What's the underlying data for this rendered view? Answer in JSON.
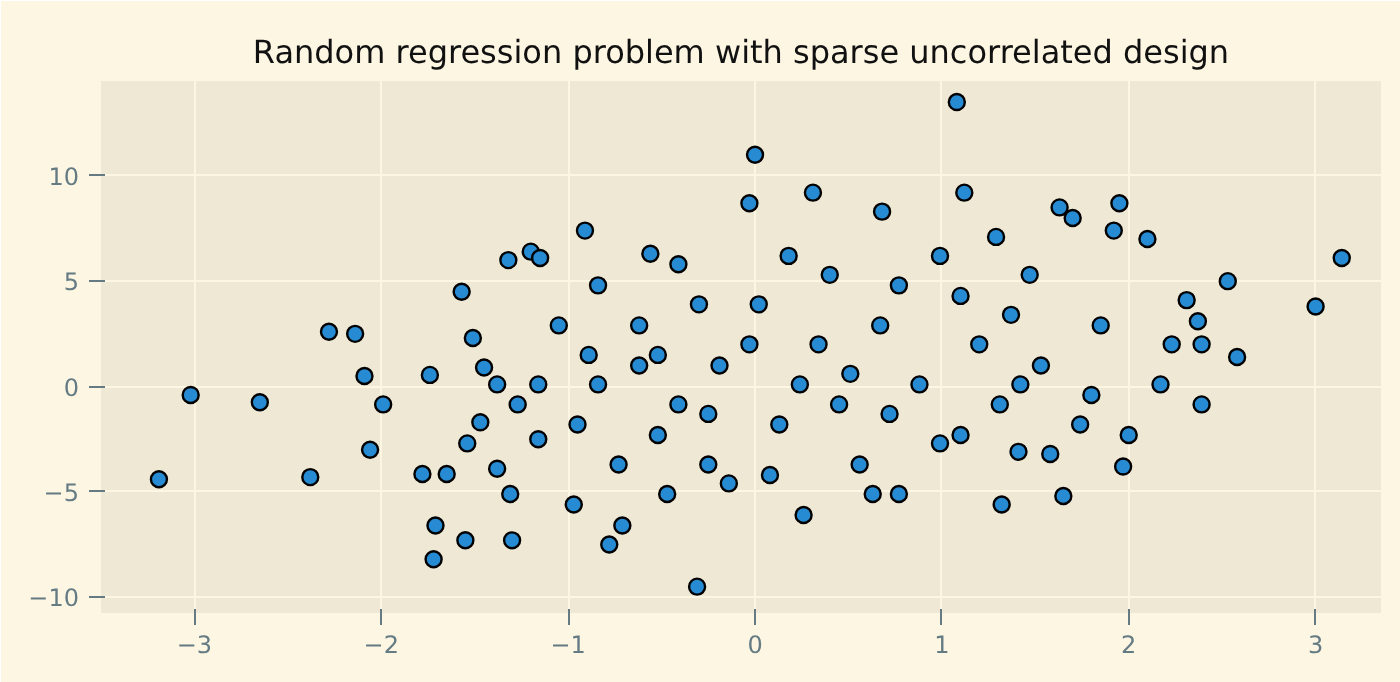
{
  "chart_data": {
    "type": "scatter",
    "title": "Random regression problem with sparse uncorrelated design",
    "xlim": [
      -3.5,
      3.35
    ],
    "ylim": [
      -10.75,
      14.5
    ],
    "xticks": [
      -3,
      -2,
      -1,
      0,
      1,
      2,
      3
    ],
    "yticks": [
      -10,
      -5,
      0,
      5,
      10
    ],
    "grid": true,
    "marker": "circle",
    "series": [
      {
        "color": "#268bd2",
        "x": [
          -3.19,
          -3.02,
          -2.65,
          -2.38,
          -2.28,
          -2.14,
          -2.09,
          -2.06,
          -1.99,
          -1.78,
          -1.74,
          -1.72,
          -1.71,
          -1.65,
          -1.57,
          -1.55,
          -1.51,
          -1.47,
          -1.45,
          -1.32,
          -1.3,
          -1.2,
          -1.15,
          -0.91,
          -0.78,
          -0.71,
          -0.56,
          -0.31,
          0,
          -0.03,
          0.31,
          0.68,
          1.08,
          1.12,
          1.29,
          1.63,
          1.7,
          1.95,
          2.1,
          1.92,
          2.58,
          2.53,
          2.31,
          3.14,
          3.0,
          2.23,
          1.97,
          1.65,
          1.41,
          1.32,
          0.63,
          0.26,
          -0.47,
          -0.97,
          -1.31,
          -1.16,
          -1.38,
          -0.84,
          -0.62,
          -0.41,
          -0.19,
          0.02,
          0.13,
          0.34,
          0.45,
          0.67,
          0.88,
          0.99,
          1.2,
          1.31,
          1.53,
          1.74,
          1.85,
          2.17,
          2.39,
          -0.95,
          -1.16,
          -1.05,
          -0.73,
          -0.52,
          -0.3,
          -0.25,
          0.18,
          0.4,
          0.56,
          0.77,
          0.99,
          1.1,
          1.37,
          1.58,
          1.8,
          2.0,
          -0.84,
          -1.27,
          -1.54,
          -1.38,
          -0.14,
          0.08,
          0.77,
          1.1,
          1.47,
          -0.41,
          -0.62,
          0.24,
          -0.03,
          0.51,
          0.72,
          -0.25,
          -0.52,
          -0.89,
          1.42,
          2.39,
          2.37
        ],
        "values": [
          -4.4,
          -0.4,
          -0.75,
          -4.3,
          2.6,
          2.5,
          0.5,
          -3.0,
          -0.85,
          -4.15,
          0.55,
          -8.2,
          -6.6,
          -4.15,
          4.5,
          -7.3,
          2.3,
          -1.7,
          0.9,
          6.0,
          -7.3,
          6.4,
          6.1,
          7.4,
          -7.5,
          -6.6,
          6.3,
          -9.5,
          11.0,
          8.7,
          9.2,
          8.3,
          13.5,
          9.2,
          7.1,
          8.5,
          8.0,
          8.7,
          7.0,
          7.4,
          1.4,
          5.0,
          4.1,
          6.1,
          3.8,
          2.0,
          -3.8,
          -5.2,
          -3.1,
          -5.6,
          -5.1,
          -6.1,
          -5.1,
          -5.6,
          -5.1,
          -2.5,
          -3.9,
          0.1,
          2.9,
          -0.85,
          1.0,
          3.9,
          -1.8,
          2.0,
          -0.85,
          2.9,
          0.1,
          -2.7,
          2.0,
          -0.85,
          1.0,
          -1.8,
          2.9,
          0.1,
          2.0,
          -1.8,
          0.1,
          2.9,
          -3.7,
          -2.3,
          3.9,
          -3.7,
          6.2,
          5.3,
          -3.7,
          4.8,
          6.2,
          4.3,
          3.4,
          -3.2,
          -0.4,
          -2.3,
          4.8,
          -0.85,
          -2.7,
          0.1,
          -4.6,
          -4.2,
          -5.1,
          -2.3,
          5.3,
          5.8,
          1.0,
          0.1,
          2.0,
          0.6,
          -1.3,
          -1.3,
          1.5,
          1.5,
          0.1,
          -0.85,
          3.1
        ]
      }
    ]
  }
}
